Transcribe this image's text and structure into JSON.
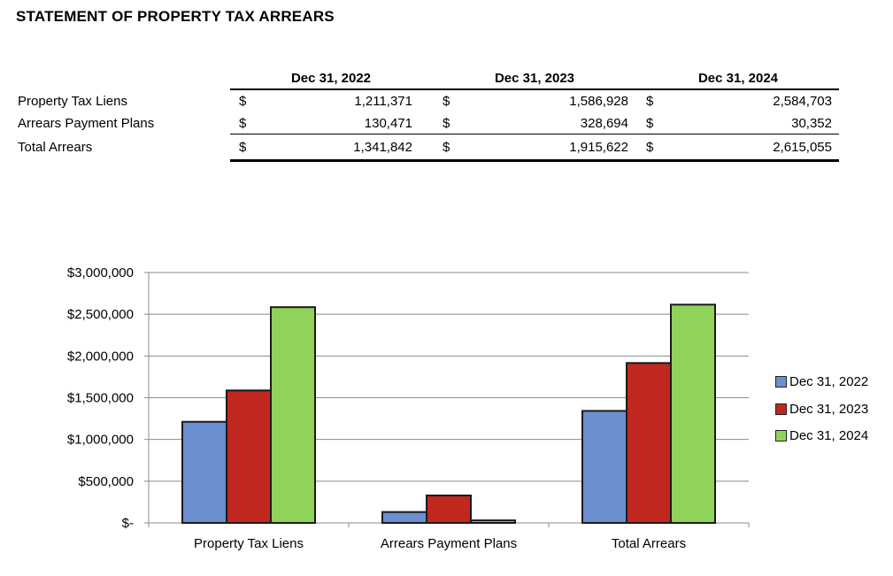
{
  "title": "STATEMENT OF PROPERTY TAX ARREARS",
  "table": {
    "headers": [
      "Dec 31, 2022",
      "Dec 31, 2023",
      "Dec 31, 2024"
    ],
    "currency_symbol": "$",
    "rows": [
      {
        "label": "Property Tax Liens",
        "values": [
          "1,211,371",
          "1,586,928",
          "2,584,703"
        ]
      },
      {
        "label": "Arrears Payment Plans",
        "values": [
          "130,471",
          "328,694",
          "30,352"
        ]
      },
      {
        "label": "Total Arrears",
        "values": [
          "1,341,842",
          "1,915,622",
          "2,615,055"
        ]
      }
    ]
  },
  "chart_data": {
    "type": "bar",
    "title": "",
    "xlabel": "",
    "ylabel": "",
    "categories": [
      "Property Tax Liens",
      "Arrears Payment Plans",
      "Total Arrears"
    ],
    "series": [
      {
        "name": "Dec 31, 2022",
        "values": [
          1211371,
          130471,
          1341842
        ],
        "color": "#6b8fcf"
      },
      {
        "name": "Dec 31, 2023",
        "values": [
          1586928,
          328694,
          1915622
        ],
        "color": "#c0271f"
      },
      {
        "name": "Dec 31, 2024",
        "values": [
          2584703,
          30352,
          2615055
        ],
        "color": "#8fd35a"
      }
    ],
    "ylim": [
      0,
      3000000
    ],
    "yticks": [
      0,
      500000,
      1000000,
      1500000,
      2000000,
      2500000,
      3000000
    ],
    "ytick_labels": [
      "$-",
      "$500,000",
      "$1,000,000",
      "$1,500,000",
      "$2,000,000",
      "$2,500,000",
      "$3,000,000"
    ],
    "grid": true,
    "legend_position": "right"
  }
}
